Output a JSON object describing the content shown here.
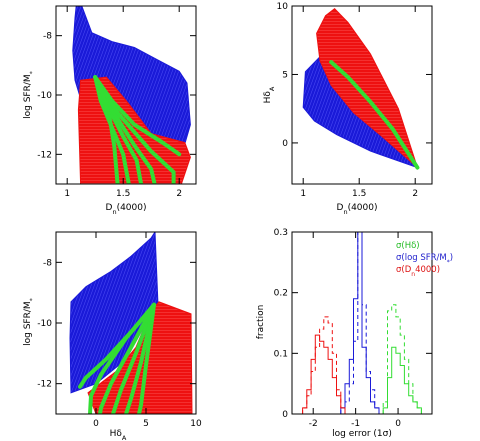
{
  "panels": [
    {
      "id": "top-left",
      "xlabel": "D_n(4000)",
      "ylabel": "log SFR/M_*",
      "xlim": [
        0.9,
        2.15
      ],
      "ylim": [
        -13,
        -7
      ],
      "xticks": [
        1,
        1.5,
        2
      ],
      "xtick_labels": [
        "1",
        "1.5",
        "2"
      ],
      "yticks": [
        -12,
        -10,
        -8
      ],
      "ytick_labels": [
        "-12",
        "-10",
        "-8"
      ]
    },
    {
      "id": "top-right",
      "xlabel": "D_n(4000)",
      "ylabel": "Hδ_A",
      "xlim": [
        0.9,
        2.15
      ],
      "ylim": [
        -3,
        10
      ],
      "xticks": [
        1,
        1.5,
        2
      ],
      "xtick_labels": [
        "1",
        "1.5",
        "2"
      ],
      "yticks": [
        0,
        5,
        10
      ],
      "ytick_labels": [
        "0",
        "5",
        "10"
      ]
    },
    {
      "id": "bottom-left",
      "xlabel": "Hδ_A",
      "ylabel": "log SFR/M_*",
      "xlim": [
        -4,
        10
      ],
      "ylim": [
        -13,
        -7
      ],
      "xticks": [
        0,
        5,
        10
      ],
      "xtick_labels": [
        "0",
        "5",
        "10"
      ],
      "yticks": [
        -12,
        -10,
        -8
      ],
      "ytick_labels": [
        "-12",
        "-10",
        "-8"
      ]
    },
    {
      "id": "bottom-right",
      "xlabel": "log error (1σ)",
      "ylabel": "fraction",
      "xlim": [
        -2.5,
        0.8
      ],
      "ylim": [
        0,
        0.3
      ],
      "xticks": [
        -2,
        -1,
        0
      ],
      "xtick_labels": [
        "-2",
        "-1",
        "0"
      ],
      "yticks": [
        0,
        0.1,
        0.2,
        0.3
      ],
      "ytick_labels": [
        "0",
        "0.1",
        "0.2",
        "0.3"
      ]
    }
  ],
  "legend": [
    {
      "label": "σ(Hδ)",
      "color": "#22bb22"
    },
    {
      "label": "σ(log SFR/M_*)",
      "color": "#2222cc"
    },
    {
      "label": "σ(D_n4000)",
      "color": "#dd1111"
    }
  ],
  "colors": {
    "blue": "#1a1ad8",
    "red": "#ee1111",
    "green": "#33dd33"
  },
  "chart_data": [
    {
      "type": "scatter",
      "panel": "top-left",
      "series": [
        {
          "color": "blue",
          "region_outline": [
            [
              1.08,
              -7
            ],
            [
              1.13,
              -7
            ],
            [
              1.22,
              -7.9
            ],
            [
              1.4,
              -8.2
            ],
            [
              1.6,
              -8.4
            ],
            [
              1.8,
              -8.8
            ],
            [
              2.0,
              -9.2
            ],
            [
              2.07,
              -9.6
            ],
            [
              2.1,
              -11
            ],
            [
              2.0,
              -12.3
            ],
            [
              1.6,
              -12.2
            ],
            [
              1.3,
              -11
            ],
            [
              1.15,
              -10.5
            ],
            [
              1.07,
              -9.5
            ],
            [
              1.05,
              -8.5
            ],
            [
              1.07,
              -7.4
            ]
          ]
        },
        {
          "color": "red",
          "region_outline": [
            [
              1.12,
              -9.5
            ],
            [
              1.35,
              -9.4
            ],
            [
              1.55,
              -10.3
            ],
            [
              1.75,
              -11.3
            ],
            [
              2.05,
              -11.6
            ],
            [
              2.1,
              -12.1
            ],
            [
              2.02,
              -13
            ],
            [
              1.12,
              -13
            ],
            [
              1.1,
              -10.5
            ]
          ]
        }
      ],
      "tracks": [
        {
          "color": "green",
          "points": [
            [
              1.25,
              -9.4
            ],
            [
              1.4,
              -10.2
            ],
            [
              1.6,
              -11.0
            ],
            [
              1.85,
              -11.6
            ],
            [
              2.0,
              -12.0
            ]
          ]
        },
        {
          "color": "green",
          "points": [
            [
              1.25,
              -9.4
            ],
            [
              1.3,
              -10.2
            ],
            [
              1.4,
              -11.1
            ],
            [
              1.5,
              -12.0
            ],
            [
              1.55,
              -13
            ]
          ]
        },
        {
          "color": "green",
          "points": [
            [
              1.25,
              -9.4
            ],
            [
              1.35,
              -10.3
            ],
            [
              1.5,
              -11.4
            ],
            [
              1.62,
              -12.2
            ],
            [
              1.66,
              -13
            ]
          ]
        },
        {
          "color": "green",
          "points": [
            [
              1.25,
              -9.4
            ],
            [
              1.4,
              -10.5
            ],
            [
              1.6,
              -11.7
            ],
            [
              1.75,
              -12.5
            ],
            [
              1.78,
              -13
            ]
          ]
        },
        {
          "color": "green",
          "points": [
            [
              1.25,
              -9.4
            ],
            [
              1.45,
              -10.6
            ],
            [
              1.75,
              -11.9
            ],
            [
              1.95,
              -12.6
            ],
            [
              1.95,
              -13
            ]
          ]
        },
        {
          "color": "green",
          "points": [
            [
              1.25,
              -9.4
            ],
            [
              1.32,
              -10.0
            ],
            [
              1.38,
              -10.8
            ],
            [
              1.42,
              -11.7
            ],
            [
              1.45,
              -13
            ]
          ]
        }
      ]
    },
    {
      "type": "scatter",
      "panel": "top-right",
      "series": [
        {
          "color": "blue",
          "region_outline": [
            [
              1.02,
              5.2
            ],
            [
              1.15,
              6.3
            ],
            [
              1.25,
              4.8
            ],
            [
              1.5,
              3.0
            ],
            [
              1.8,
              0.5
            ],
            [
              2.02,
              -1.8
            ],
            [
              1.6,
              -0.6
            ],
            [
              1.3,
              0.6
            ],
            [
              1.1,
              1.6
            ],
            [
              1.0,
              2.6
            ]
          ]
        },
        {
          "color": "red",
          "region_outline": [
            [
              1.2,
              9.3
            ],
            [
              1.28,
              9.8
            ],
            [
              1.4,
              8.8
            ],
            [
              1.6,
              6.5
            ],
            [
              1.85,
              2.5
            ],
            [
              2.02,
              -1.8
            ],
            [
              1.7,
              0.5
            ],
            [
              1.45,
              2.2
            ],
            [
              1.25,
              4.2
            ],
            [
              1.15,
              6.0
            ],
            [
              1.12,
              8.0
            ]
          ]
        }
      ],
      "tracks": [
        {
          "color": "green",
          "points": [
            [
              1.25,
              5.9
            ],
            [
              1.4,
              4.8
            ],
            [
              1.6,
              3.0
            ],
            [
              1.8,
              1.0
            ],
            [
              2.02,
              -1.8
            ]
          ]
        }
      ]
    },
    {
      "type": "scatter",
      "panel": "bottom-left",
      "series": [
        {
          "color": "blue",
          "region_outline": [
            [
              -2.5,
              -9.3
            ],
            [
              -1,
              -8.8
            ],
            [
              1.5,
              -8.3
            ],
            [
              3.5,
              -7.8
            ],
            [
              5.5,
              -7.2
            ],
            [
              5.9,
              -7.0
            ],
            [
              6.2,
              -9.4
            ],
            [
              5,
              -10
            ],
            [
              3,
              -11.2
            ],
            [
              0,
              -12
            ],
            [
              -2.5,
              -12.3
            ],
            [
              -2.6,
              -10.5
            ]
          ]
        },
        {
          "color": "red",
          "region_outline": [
            [
              -0.8,
              -12.3
            ],
            [
              2,
              -11.6
            ],
            [
              4,
              -10.8
            ],
            [
              5.5,
              -9.6
            ],
            [
              6.3,
              -9.3
            ],
            [
              9.5,
              -9.7
            ],
            [
              9.6,
              -13
            ],
            [
              0,
              -13
            ]
          ]
        }
      ],
      "tracks": [
        {
          "color": "green",
          "points": [
            [
              5.8,
              -9.4
            ],
            [
              3.5,
              -10.3
            ],
            [
              1,
              -11.2
            ],
            [
              -1,
              -11.8
            ],
            [
              -1.6,
              -12.1
            ]
          ]
        },
        {
          "color": "green",
          "points": [
            [
              5.8,
              -9.4
            ],
            [
              3,
              -10.5
            ],
            [
              0.5,
              -11.7
            ],
            [
              -0.5,
              -12.4
            ],
            [
              -0.6,
              -13
            ]
          ]
        },
        {
          "color": "green",
          "points": [
            [
              5.8,
              -9.4
            ],
            [
              3.5,
              -10.8
            ],
            [
              1.5,
              -12.0
            ],
            [
              0.5,
              -12.8
            ],
            [
              0.4,
              -13
            ]
          ]
        },
        {
          "color": "green",
          "points": [
            [
              5.8,
              -9.4
            ],
            [
              4,
              -11.0
            ],
            [
              2.5,
              -12.2
            ],
            [
              1.7,
              -13
            ]
          ]
        },
        {
          "color": "green",
          "points": [
            [
              5.8,
              -9.4
            ],
            [
              4.5,
              -11.3
            ],
            [
              3.5,
              -12.5
            ],
            [
              3,
              -13
            ]
          ]
        },
        {
          "color": "green",
          "points": [
            [
              5.8,
              -9.4
            ],
            [
              5,
              -11.4
            ],
            [
              4.5,
              -12.7
            ],
            [
              4.3,
              -13
            ]
          ]
        }
      ]
    },
    {
      "type": "histogram",
      "panel": "bottom-right",
      "bin_width": 0.1,
      "series": [
        {
          "color": "green",
          "style": "solid",
          "x": [
            -0.3,
            -0.2,
            -0.1,
            0.0,
            0.1,
            0.2,
            0.3,
            0.4,
            0.5
          ],
          "values": [
            0.01,
            0.06,
            0.11,
            0.1,
            0.08,
            0.05,
            0.03,
            0.02,
            0.01
          ]
        },
        {
          "color": "green",
          "style": "dashed",
          "x": [
            -0.3,
            -0.2,
            -0.1,
            0.0,
            0.1,
            0.2,
            0.3,
            0.4,
            0.5
          ],
          "values": [
            0.02,
            0.17,
            0.18,
            0.16,
            0.13,
            0.09,
            0.05,
            0.02,
            0.01
          ]
        },
        {
          "color": "blue",
          "style": "solid",
          "x": [
            -1.3,
            -1.2,
            -1.1,
            -1.0,
            -0.9,
            -0.8,
            -0.7,
            -0.6,
            -0.5
          ],
          "values": [
            0.01,
            0.05,
            0.09,
            0.19,
            0.3,
            0.11,
            0.06,
            0.02,
            0.01
          ]
        },
        {
          "color": "blue",
          "style": "dashed",
          "x": [
            -1.3,
            -1.2,
            -1.1,
            -1.0,
            -0.9,
            -0.8,
            -0.7,
            -0.6,
            -0.5
          ],
          "values": [
            0.01,
            0.02,
            0.05,
            0.12,
            0.3,
            0.18,
            0.07,
            0.04,
            0.01
          ]
        },
        {
          "color": "red",
          "style": "solid",
          "x": [
            -2.2,
            -2.1,
            -2.0,
            -1.9,
            -1.8,
            -1.7,
            -1.6,
            -1.5,
            -1.4,
            -1.3
          ],
          "values": [
            0.01,
            0.04,
            0.09,
            0.13,
            0.12,
            0.11,
            0.09,
            0.06,
            0.03,
            0.01
          ]
        },
        {
          "color": "red",
          "style": "dashed",
          "x": [
            -2.2,
            -2.1,
            -2.0,
            -1.9,
            -1.8,
            -1.7,
            -1.6,
            -1.5,
            -1.4,
            -1.3
          ],
          "values": [
            0.01,
            0.03,
            0.07,
            0.11,
            0.14,
            0.16,
            0.15,
            0.1,
            0.04,
            0.01
          ]
        }
      ]
    }
  ]
}
